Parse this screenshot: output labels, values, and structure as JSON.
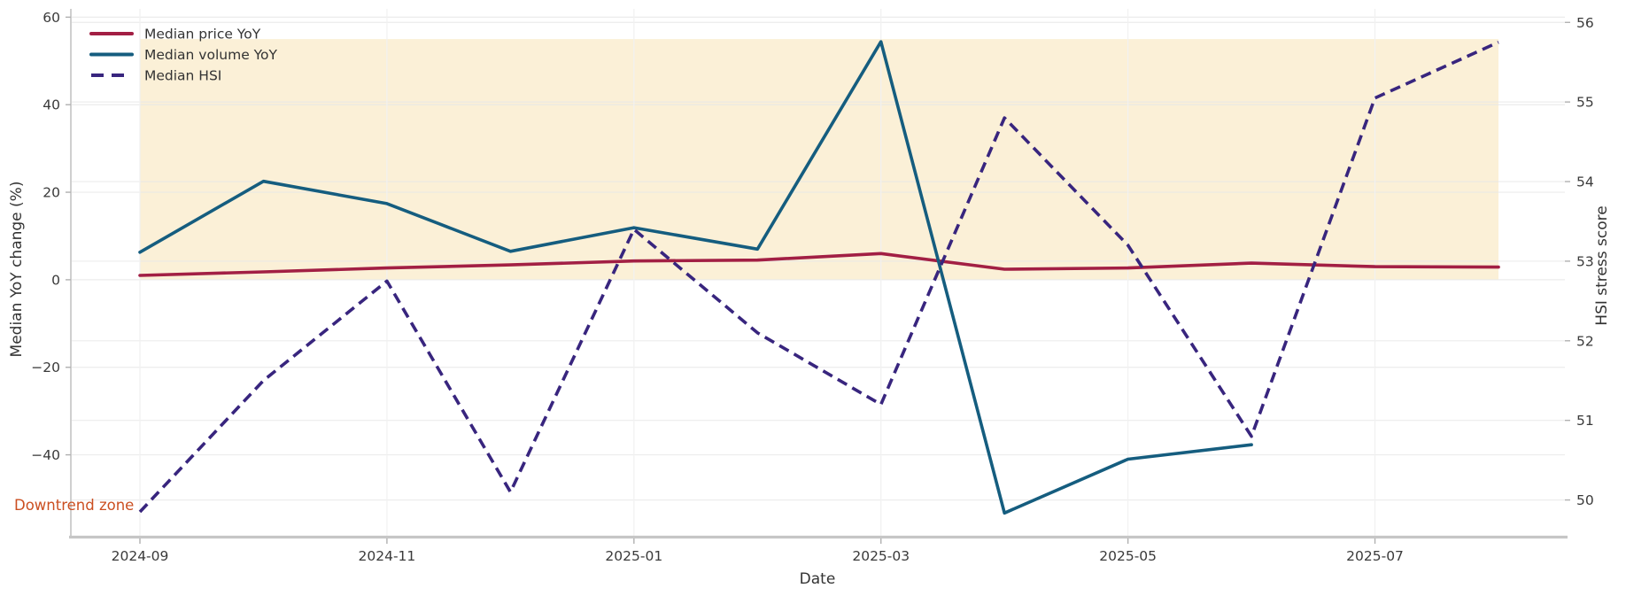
{
  "figure": {
    "xlabel": "Date",
    "ylabel_left": "Median YoY change (%)",
    "ylabel_right": "HSI stress score",
    "annotation_text": "Downtrend zone",
    "annotation_color": "#cb4f21"
  },
  "chart_data": {
    "type": "line",
    "title": "",
    "xlabel": "Date",
    "ylabel_left": "Median YoY change (%)",
    "ylabel_right": "HSI stress score",
    "x": [
      "2024-09",
      "2024-10",
      "2024-11",
      "2024-12",
      "2025-01",
      "2025-02",
      "2025-03",
      "2025-04",
      "2025-05",
      "2025-06",
      "2025-07",
      "2025-08"
    ],
    "x_tick_labels": [
      "2024-09",
      "2024-11",
      "2025-01",
      "2025-03",
      "2025-05",
      "2025-07"
    ],
    "x_tick_indices": [
      0,
      2,
      4,
      6,
      8,
      10
    ],
    "series": [
      {
        "name": "Median price YoY",
        "axis": "left",
        "style": "solid",
        "color": "#a21f44",
        "values": [
          1.0,
          1.8,
          2.7,
          3.4,
          4.3,
          4.5,
          6.0,
          2.4,
          2.7,
          3.8,
          3.0,
          2.9
        ]
      },
      {
        "name": "Median volume YoY",
        "axis": "left",
        "style": "solid",
        "color": "#155d7f",
        "values": [
          6.3,
          22.5,
          17.4,
          6.5,
          11.9,
          7.0,
          54.4,
          -53.3,
          -41.0,
          -37.7,
          null,
          null
        ]
      },
      {
        "name": "Median HSI",
        "axis": "right",
        "style": "dashed",
        "color": "#38257e",
        "values": [
          49.85,
          51.5,
          52.75,
          50.1,
          53.4,
          52.1,
          51.2,
          54.8,
          53.2,
          50.8,
          55.05,
          55.75
        ]
      }
    ],
    "left_axis": {
      "range": [
        -58.5,
        61.9
      ],
      "ticks": [
        60,
        40,
        20,
        0,
        -20,
        -40
      ],
      "tick_labels": [
        "60",
        "40",
        "20",
        "0",
        "−20",
        "−40"
      ]
    },
    "right_axis": {
      "range": [
        49.55,
        56.17
      ],
      "ticks": [
        56,
        55,
        54,
        53,
        52,
        51,
        50
      ],
      "tick_labels": [
        "56",
        "55",
        "54",
        "53",
        "52",
        "51",
        "50"
      ]
    },
    "shaded_zone": {
      "axis": "left",
      "y_from": 0,
      "y_to": 55,
      "x_from": "2024-09",
      "x_to": "2025-08",
      "color": "#fbf0d7"
    },
    "annotation": {
      "text": "Downtrend zone",
      "color": "#cb4f21"
    },
    "legend_position": "upper-left",
    "grid": true
  },
  "style": {
    "grid_color_h": "#e7e7e7",
    "grid_color_v": "#f1f1f1",
    "spine_color": "#cfcfcf",
    "bottom_spine_color": "#c6c6c6",
    "tick_color": "#b0b0b0",
    "tick_label_color": "#3a3a3a",
    "axis_label_color": "#333333",
    "legend_text_color": "#333333"
  }
}
